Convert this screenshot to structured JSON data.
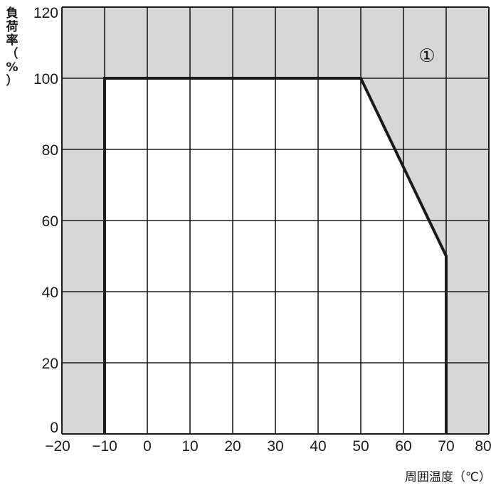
{
  "chart_data": {
    "type": "area",
    "ylabel": "負荷率（%）",
    "xlabel": "周囲温度（℃）",
    "xlim": [
      -20,
      80
    ],
    "ylim": [
      0,
      120
    ],
    "x_ticks": [
      "−20",
      "−10",
      "0",
      "10",
      "20",
      "30",
      "40",
      "50",
      "60",
      "70",
      "80"
    ],
    "y_ticks": [
      "0",
      "20",
      "40",
      "60",
      "80",
      "100",
      "120"
    ],
    "grid": true,
    "series": [
      {
        "x": [
          -10,
          -10,
          50,
          70,
          70
        ],
        "y": [
          0,
          100,
          100,
          50,
          0
        ]
      }
    ],
    "annotation": "①",
    "colors": {
      "shaded": "#d7d7d7",
      "plot": "#ffffff",
      "line": "#1a1a1a",
      "grid": "#1a1a1a"
    }
  }
}
